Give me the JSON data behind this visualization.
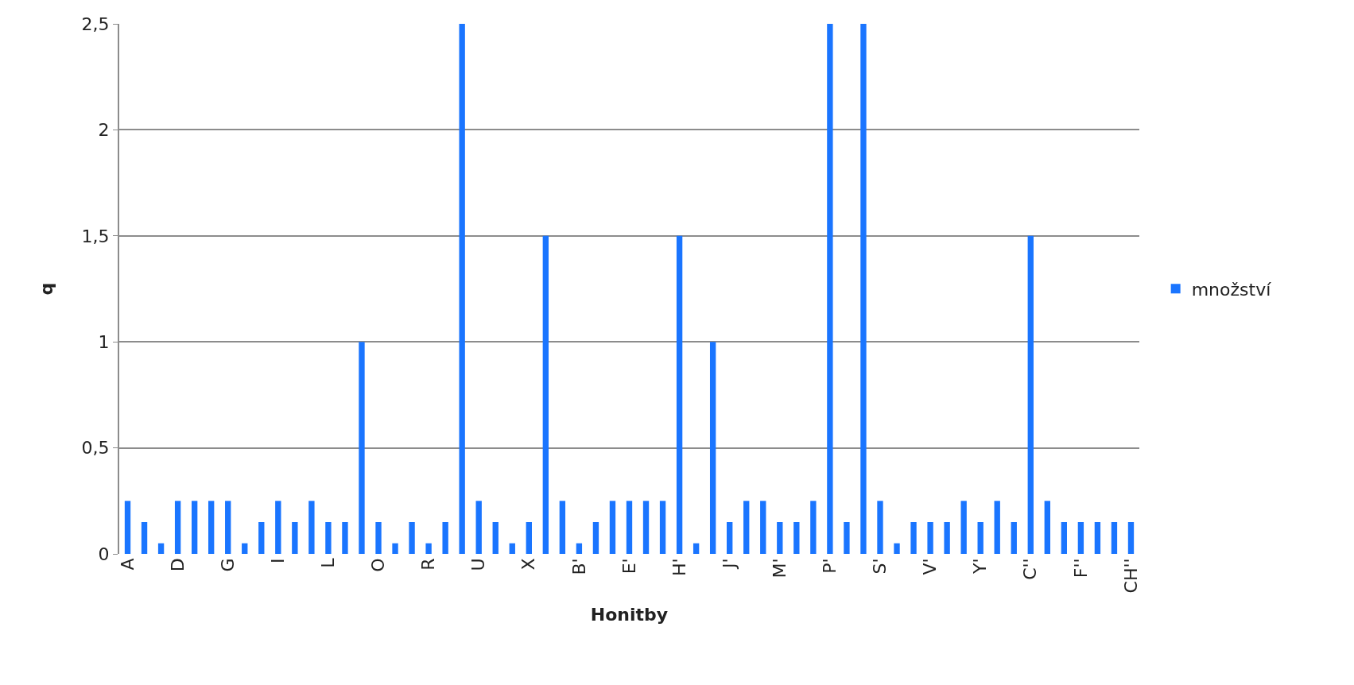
{
  "chart_data": {
    "type": "bar",
    "xlabel": "Honitby",
    "ylabel": "q",
    "categories": [
      "A",
      null,
      null,
      "D",
      null,
      null,
      "G",
      null,
      null,
      "I",
      null,
      null,
      "L",
      null,
      null,
      "O",
      null,
      null,
      "R",
      null,
      null,
      "U",
      null,
      null,
      "X",
      null,
      null,
      "B'",
      null,
      null,
      "E'",
      null,
      null,
      "H'",
      null,
      null,
      "J'",
      null,
      null,
      "M'",
      null,
      null,
      "P'",
      null,
      null,
      "S'",
      null,
      null,
      "V'",
      null,
      null,
      "Y'",
      null,
      null,
      "C''",
      null,
      null,
      "F''",
      null,
      null,
      "CH''"
    ],
    "series": [
      {
        "name": "množství",
        "color": "#1a75ff",
        "values": [
          0.25,
          0.15,
          0.05,
          0.25,
          0.25,
          0.25,
          0.25,
          0.05,
          0.15,
          0.25,
          0.15,
          0.25,
          0.15,
          0.15,
          1.0,
          0.15,
          0.05,
          0.15,
          0.05,
          0.15,
          2.5,
          0.25,
          0.15,
          0.05,
          0.15,
          1.5,
          0.25,
          0.05,
          0.15,
          0.25,
          0.25,
          0.25,
          0.25,
          1.5,
          0.05,
          1.0,
          0.15,
          0.25,
          0.25,
          0.15,
          0.15,
          0.25,
          2.5,
          0.15,
          2.5,
          0.25,
          0.05,
          0.15,
          0.15,
          0.15,
          0.25,
          0.15,
          0.25,
          0.15,
          1.5,
          0.25,
          0.15,
          0.15,
          0.15,
          0.15,
          0.15
        ]
      }
    ],
    "ylim": [
      0,
      2.5
    ],
    "yticks": [
      0,
      {
        "value": 0.5,
        "label": "0,5"
      },
      1,
      {
        "value": 1.5,
        "label": "1,5"
      },
      2,
      {
        "value": 2.5,
        "label": "2,5"
      }
    ],
    "grid": "y",
    "legend": "right"
  }
}
